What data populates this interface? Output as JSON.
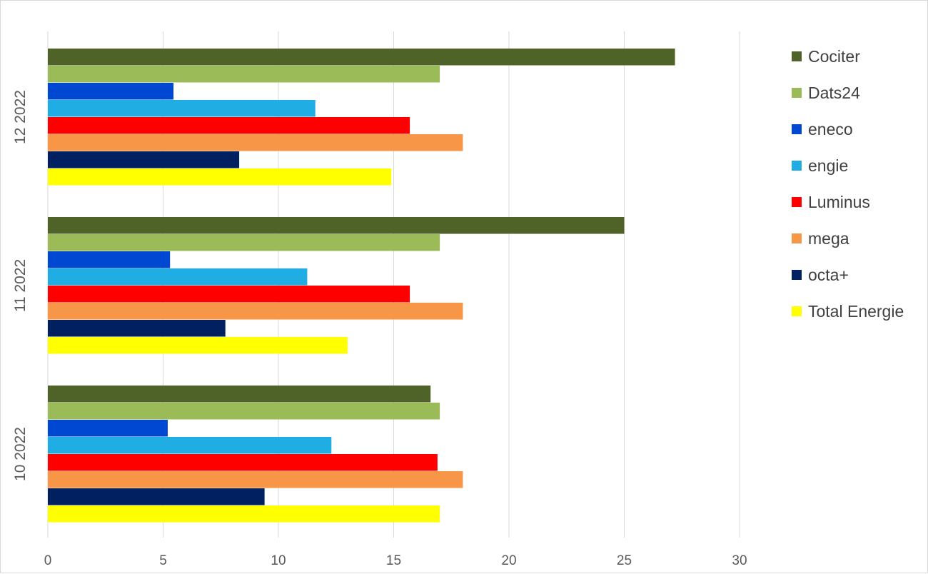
{
  "chart_data": {
    "type": "bar",
    "orientation": "horizontal",
    "title": "",
    "xlabel": "",
    "ylabel": "",
    "xlim": [
      0,
      30
    ],
    "x_ticks": [
      "0",
      "5",
      "10",
      "15",
      "20",
      "25",
      "30"
    ],
    "grid": "vertical",
    "legend_position": "right",
    "categories": [
      "12 2022",
      "11 2022",
      "10 2022"
    ],
    "series": [
      {
        "name": "Cociter",
        "color": "#4f6228",
        "values": [
          27.2,
          25.0,
          16.6
        ]
      },
      {
        "name": "Dats24",
        "color": "#9bbb59",
        "values": [
          17.0,
          17.0,
          17.0
        ]
      },
      {
        "name": "eneco",
        "color": "#0047d1",
        "values": [
          5.45,
          5.3,
          5.2
        ]
      },
      {
        "name": "engie",
        "color": "#1fade4",
        "values": [
          11.6,
          11.25,
          12.3
        ]
      },
      {
        "name": "Luminus",
        "color": "#ff0000",
        "values": [
          15.7,
          15.7,
          16.9
        ]
      },
      {
        "name": "mega",
        "color": "#f79646",
        "values": [
          18.0,
          18.0,
          18.0
        ]
      },
      {
        "name": "octa+",
        "color": "#002060",
        "values": [
          8.3,
          7.7,
          9.4
        ]
      },
      {
        "name": "Total Energie",
        "color": "#ffff00",
        "values": [
          14.9,
          13.0,
          17.0
        ]
      }
    ]
  }
}
